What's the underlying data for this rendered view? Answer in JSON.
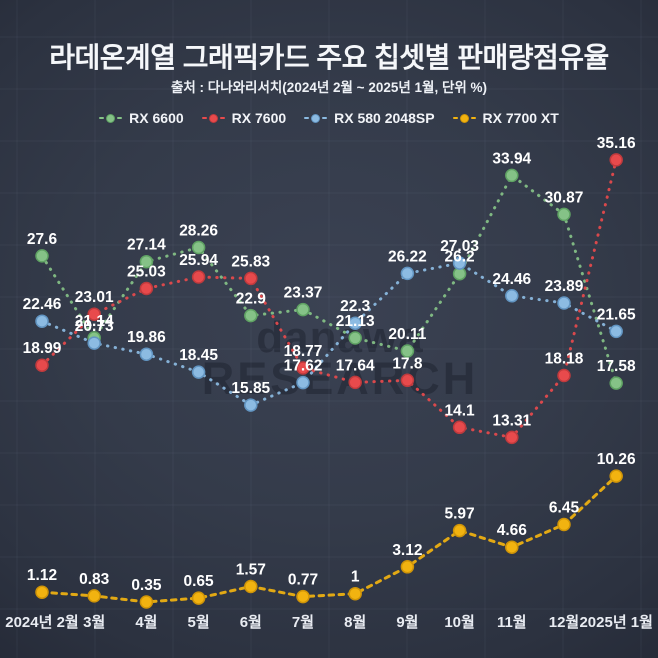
{
  "chart_data": {
    "type": "line",
    "title": "라데온계열 그래픽카드 주요 칩셋별 판매량점유율",
    "subtitle": "출처 : 다나와리서치(2024년 2월 ~ 2025년 1월, 단위 %)",
    "unit": "%",
    "legend_position": "top",
    "grid": true,
    "ylim": [
      0,
      38
    ],
    "categories": [
      "2024년 2월",
      "3월",
      "4월",
      "5월",
      "6월",
      "7월",
      "8월",
      "9월",
      "10월",
      "11월",
      "12월",
      "2025년 1월"
    ],
    "series": [
      {
        "name": "RX 6600",
        "color": "#85c287",
        "border": "#5fa263",
        "values": [
          27.6,
          21.14,
          27.14,
          28.26,
          22.9,
          23.37,
          21.13,
          20.11,
          26.2,
          33.94,
          30.87,
          17.58
        ]
      },
      {
        "name": "RX 7600",
        "color": "#e84a4c",
        "border": "#bf3a3d",
        "values": [
          18.99,
          23.01,
          25.03,
          25.94,
          25.83,
          18.77,
          17.64,
          17.8,
          14.1,
          13.31,
          18.18,
          35.16
        ]
      },
      {
        "name": "RX 580 2048SP",
        "color": "#8cbbe2",
        "border": "#6295c2",
        "values": [
          22.46,
          20.73,
          19.86,
          18.45,
          15.85,
          17.62,
          22.3,
          26.22,
          27.03,
          24.46,
          23.89,
          21.65
        ]
      },
      {
        "name": "RX 7700 XT",
        "color": "#f2b310",
        "border": "#cf9408",
        "values": [
          1.12,
          0.83,
          0.35,
          0.65,
          1.57,
          0.77,
          1,
          3.12,
          5.97,
          4.66,
          6.45,
          10.26
        ]
      }
    ]
  },
  "watermark": {
    "line1": "danawa",
    "line2": "RESEARCH"
  },
  "style_colors": {
    "background_center": "#3b4253",
    "background_edge": "#242936",
    "text": "#f5f7fa",
    "axis_label": "#e9ecf2",
    "grid_line": "#9aa7c0"
  }
}
